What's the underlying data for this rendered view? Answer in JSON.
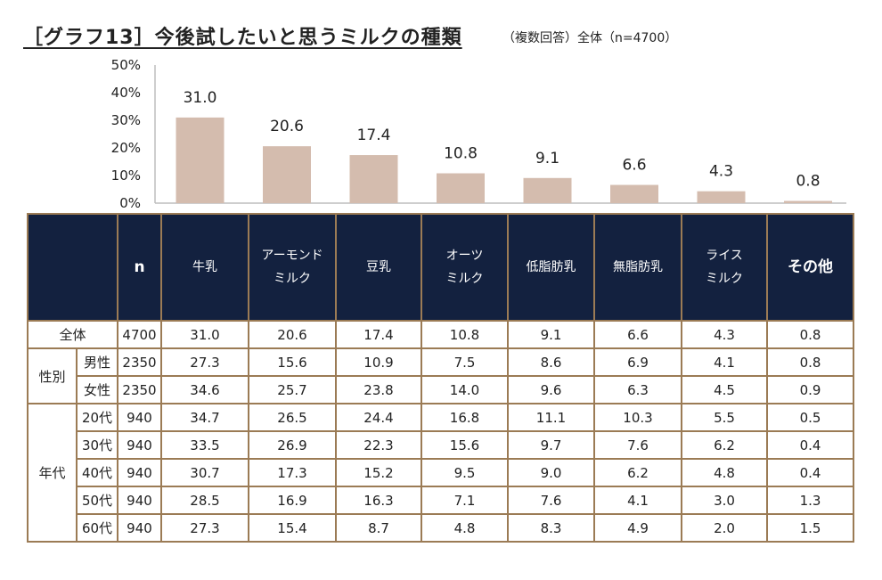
{
  "title": "［グラフ13］今後試したいと思うミルクの種類",
  "subtitle": "（複数回答）全体（n=4700）",
  "colors": {
    "bar": "#d4bcae",
    "header_bg": "#13213f",
    "border": "#9b7b55",
    "axis": "#bdbdbd"
  },
  "chart_data": {
    "type": "bar",
    "title": "今後試したいと思うミルクの種類",
    "categories": [
      "牛乳",
      "アーモンドミルク",
      "豆乳",
      "オーツミルク",
      "低脂肪乳",
      "無脂肪乳",
      "ライスミルク",
      "その他"
    ],
    "values": [
      31.0,
      20.6,
      17.4,
      10.8,
      9.1,
      6.6,
      4.3,
      0.8
    ],
    "value_labels": [
      "31.0",
      "20.6",
      "17.4",
      "10.8",
      "9.1",
      "6.6",
      "4.3",
      "0.8"
    ],
    "ylim": [
      0,
      50
    ],
    "yticks": [
      "0%",
      "10%",
      "20%",
      "30%",
      "40%",
      "50%"
    ],
    "xlabel": "",
    "ylabel": "",
    "grid": false
  },
  "table": {
    "headers": {
      "n": "n",
      "cols": [
        [
          "牛乳"
        ],
        [
          "アーモンド",
          "ミルク"
        ],
        [
          "豆乳"
        ],
        [
          "オーツ",
          "ミルク"
        ],
        [
          "低脂肪乳"
        ],
        [
          "無脂肪乳"
        ],
        [
          "ライス",
          "ミルク"
        ],
        [
          "その他"
        ]
      ]
    },
    "groups": [
      {
        "label": "全体",
        "rows": [
          {
            "sub": "",
            "n": "4700",
            "values": [
              "31.0",
              "20.6",
              "17.4",
              "10.8",
              "9.1",
              "6.6",
              "4.3",
              "0.8"
            ]
          }
        ]
      },
      {
        "label": "性別",
        "rows": [
          {
            "sub": "男性",
            "n": "2350",
            "values": [
              "27.3",
              "15.6",
              "10.9",
              "7.5",
              "8.6",
              "6.9",
              "4.1",
              "0.8"
            ]
          },
          {
            "sub": "女性",
            "n": "2350",
            "values": [
              "34.6",
              "25.7",
              "23.8",
              "14.0",
              "9.6",
              "6.3",
              "4.5",
              "0.9"
            ]
          }
        ]
      },
      {
        "label": "年代",
        "rows": [
          {
            "sub": "20代",
            "n": "940",
            "values": [
              "34.7",
              "26.5",
              "24.4",
              "16.8",
              "11.1",
              "10.3",
              "5.5",
              "0.5"
            ]
          },
          {
            "sub": "30代",
            "n": "940",
            "values": [
              "33.5",
              "26.9",
              "22.3",
              "15.6",
              "9.7",
              "7.6",
              "6.2",
              "0.4"
            ]
          },
          {
            "sub": "40代",
            "n": "940",
            "values": [
              "30.7",
              "17.3",
              "15.2",
              "9.5",
              "9.0",
              "6.2",
              "4.8",
              "0.4"
            ]
          },
          {
            "sub": "50代",
            "n": "940",
            "values": [
              "28.5",
              "16.9",
              "16.3",
              "7.1",
              "7.6",
              "4.1",
              "3.0",
              "1.3"
            ]
          },
          {
            "sub": "60代",
            "n": "940",
            "values": [
              "27.3",
              "15.4",
              "8.7",
              "4.8",
              "8.3",
              "4.9",
              "2.0",
              "1.5"
            ]
          }
        ]
      }
    ]
  }
}
